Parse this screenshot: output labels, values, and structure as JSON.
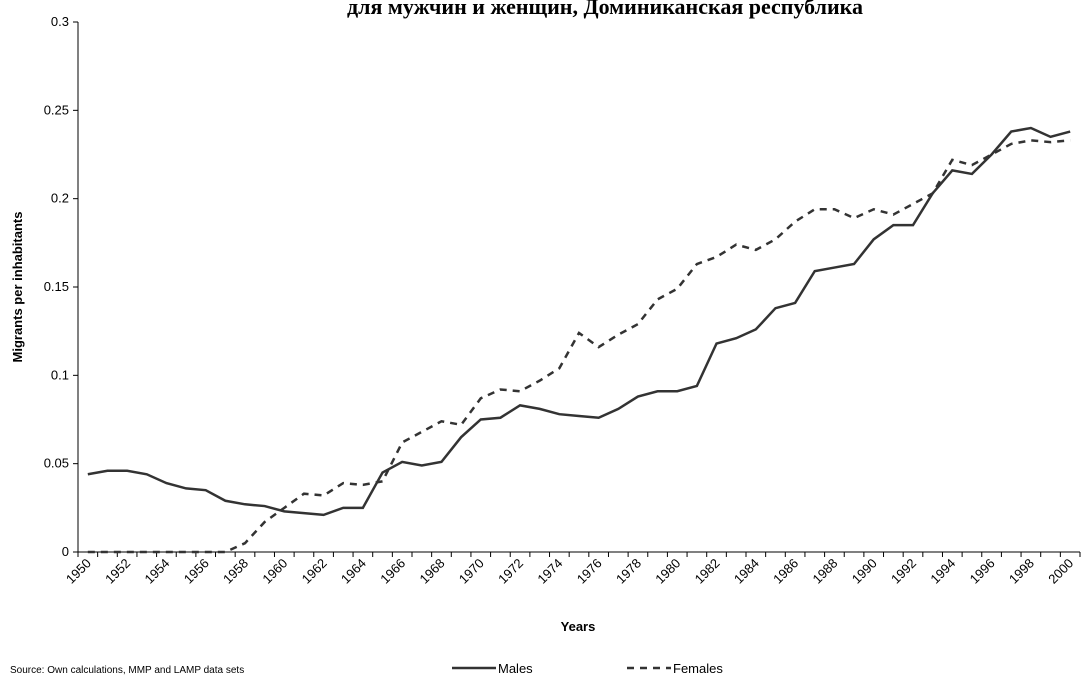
{
  "chart_data": {
    "type": "line",
    "title": "для мужчин и женщин, Доминиканская республика",
    "x_label": "Years",
    "y_label": "Migrants per inhabitants",
    "source": "Source: Own calculations, MMP and LAMP data sets",
    "categories": [
      "1950",
      null,
      "1952",
      null,
      "1954",
      null,
      "1956",
      null,
      "1958",
      null,
      "1960",
      null,
      "1962",
      null,
      "1964",
      null,
      "1966",
      null,
      "1968",
      null,
      "1970",
      null,
      "1972",
      null,
      "1974",
      null,
      "1976",
      null,
      "1978",
      null,
      "1980",
      null,
      "1982",
      null,
      "1984",
      null,
      "1986",
      null,
      "1988",
      null,
      "1990",
      null,
      "1992",
      null,
      "1994",
      null,
      "1996",
      null,
      "1998",
      null,
      "2000"
    ],
    "series": [
      {
        "name": "Males",
        "color": "#333333",
        "dash": false,
        "values": [
          0.044,
          0.046,
          0.046,
          0.044,
          0.039,
          0.036,
          0.035,
          0.029,
          0.027,
          0.026,
          0.023,
          0.022,
          0.021,
          0.025,
          0.025,
          0.045,
          0.051,
          0.049,
          0.051,
          0.065,
          0.075,
          0.076,
          0.083,
          0.081,
          0.078,
          0.077,
          0.076,
          0.081,
          0.088,
          0.091,
          0.091,
          0.094,
          0.118,
          0.121,
          0.126,
          0.138,
          0.141,
          0.159,
          0.161,
          0.163,
          0.177,
          0.185,
          0.185,
          0.203,
          0.216,
          0.214,
          0.225,
          0.238,
          0.24,
          0.235,
          0.238
        ]
      },
      {
        "name": "Females",
        "color": "#333333",
        "dash": true,
        "values": [
          0,
          0,
          0,
          0,
          0,
          0,
          0,
          0,
          0.005,
          0.017,
          0.025,
          0.033,
          0.032,
          0.039,
          0.038,
          0.04,
          0.062,
          0.068,
          0.074,
          0.072,
          0.087,
          0.092,
          0.091,
          0.097,
          0.104,
          0.124,
          0.116,
          0.123,
          0.129,
          0.143,
          0.149,
          0.163,
          0.167,
          0.174,
          0.171,
          0.177,
          0.187,
          0.194,
          0.194,
          0.189,
          0.194,
          0.191,
          0.197,
          0.203,
          0.222,
          0.219,
          0.225,
          0.231,
          0.233,
          0.232,
          0.233
        ]
      }
    ],
    "ylim": [
      0,
      0.3
    ],
    "yticks": [
      0,
      0.05,
      0.1,
      0.15,
      0.2,
      0.25,
      0.3
    ],
    "legend": "bottom"
  }
}
